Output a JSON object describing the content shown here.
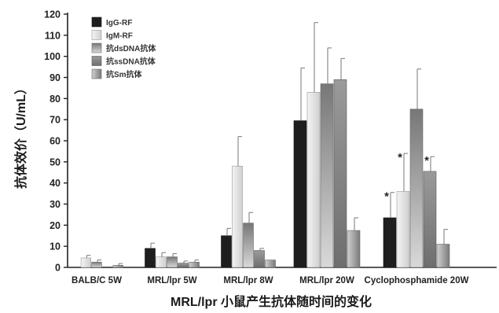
{
  "chart_data": {
    "type": "bar",
    "title": "",
    "xlabel": "MRL/lpr 小鼠产生抗体随时间的变化",
    "ylabel": "抗体效价（U/mL）",
    "ylim": [
      0,
      120
    ],
    "yticks": [
      0,
      10,
      20,
      30,
      40,
      50,
      60,
      70,
      80,
      90,
      100,
      110,
      120
    ],
    "categories": [
      "BALB/C 5W",
      "MRL/lpr 5W",
      "MRL/lpr 8W",
      "MRL/lpr 20W",
      "Cyclophosphamide 20W"
    ],
    "legend_position": "top-left",
    "series": [
      {
        "name": "IgG-RF",
        "color": "#1e1e1e",
        "values": [
          0,
          9,
          15,
          69.5,
          23.5
        ],
        "errors": [
          0,
          2.5,
          3.5,
          25,
          12
        ]
      },
      {
        "name": "IgM-RF",
        "color": "#e2e2e2",
        "values": [
          4.5,
          5,
          48,
          83,
          36
        ],
        "errors": [
          1.2,
          2,
          14,
          33,
          18
        ]
      },
      {
        "name": "抗dsDNA抗体",
        "color": "#bdbdbd",
        "values": [
          2.5,
          5,
          21,
          87,
          75
        ],
        "errors": [
          1,
          1.5,
          5,
          17,
          19
        ]
      },
      {
        "name": "抗ssDNA抗体",
        "color": "#8c8c8c",
        "values": [
          0,
          2,
          8,
          89,
          45.5
        ],
        "errors": [
          0,
          1,
          1,
          10,
          7
        ]
      },
      {
        "name": "抗Sm抗体",
        "color": "#b5b5b5",
        "values": [
          1,
          2.5,
          3.5,
          17.5,
          11
        ],
        "errors": [
          0.8,
          1,
          0,
          6,
          7
        ]
      }
    ],
    "annotations": [
      {
        "text": "*",
        "category": "Cyclophosphamide 20W",
        "series": "IgG-RF"
      },
      {
        "text": "*",
        "category": "Cyclophosphamide 20W",
        "series": "IgM-RF"
      },
      {
        "text": "*",
        "category": "Cyclophosphamide 20W",
        "series": "抗ssDNA抗体"
      }
    ]
  }
}
